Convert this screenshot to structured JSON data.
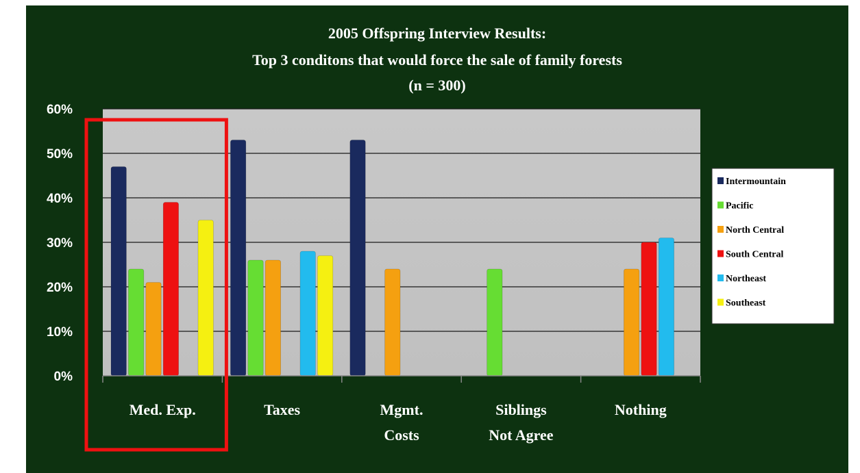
{
  "chart_data": {
    "type": "bar",
    "title": [
      "2005 Offspring Interview Results:",
      "Top 3 conditons that would force the sale of family forests",
      "(n = 300)"
    ],
    "categories": [
      [
        "Med. Exp."
      ],
      [
        "Taxes"
      ],
      [
        "Mgmt.",
        "Costs"
      ],
      [
        "Siblings",
        "Not Agree"
      ],
      [
        "Nothing"
      ]
    ],
    "yticks": [
      "0%",
      "10%",
      "20%",
      "30%",
      "40%",
      "50%",
      "60%"
    ],
    "ylim": [
      0,
      60
    ],
    "series": [
      {
        "name": "Intermountain",
        "color": "#1a2a5e",
        "values": [
          47,
          53,
          53,
          null,
          null
        ]
      },
      {
        "name": "Pacific",
        "color": "#66dd33",
        "values": [
          24,
          26,
          null,
          24,
          null
        ]
      },
      {
        "name": "North Central",
        "color": "#f5a010",
        "values": [
          21,
          26,
          24,
          null,
          24
        ]
      },
      {
        "name": "South Central",
        "color": "#ee1111",
        "values": [
          39,
          null,
          null,
          null,
          30
        ]
      },
      {
        "name": "Northeast",
        "color": "#22bbee",
        "values": [
          null,
          28,
          null,
          null,
          31
        ]
      },
      {
        "name": "Southeast",
        "color": "#f5f011",
        "values": [
          35,
          27,
          null,
          null,
          null
        ]
      }
    ],
    "grid": true,
    "legend_position": "right",
    "highlight": {
      "category_index": 0,
      "color": "#ee1111"
    }
  }
}
